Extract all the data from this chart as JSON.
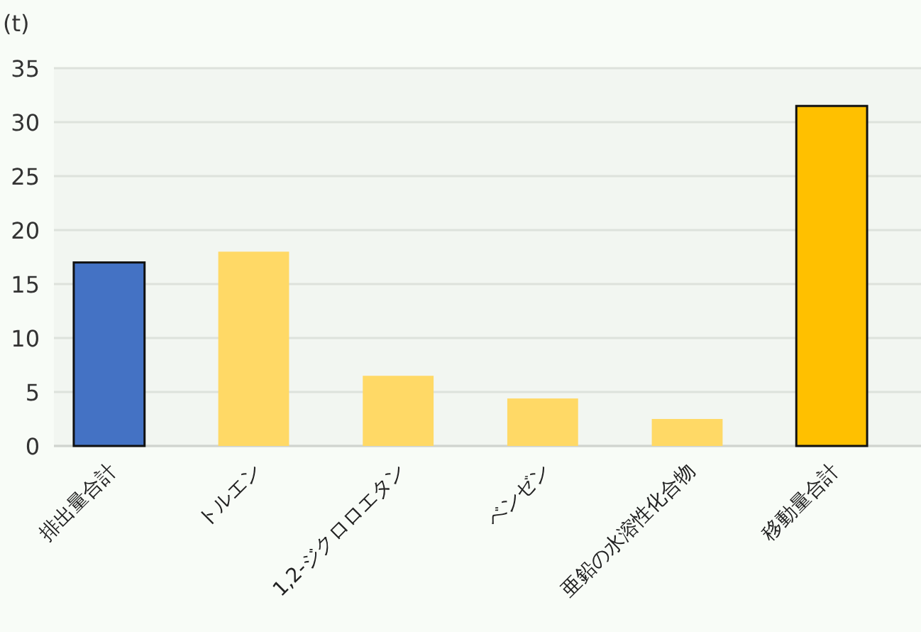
{
  "chart_data": {
    "type": "bar",
    "ylabel": "(t)",
    "categories": [
      "排出量合計",
      "トルエン",
      "1,2-ジクロロエタン",
      "ベンゼン",
      "亜鉛の水溶性化合物",
      "移動量合計"
    ],
    "values": [
      17,
      18,
      6.5,
      4.4,
      2.5,
      31.5
    ],
    "colors": [
      "#4472c4",
      "#ffd966",
      "#ffd966",
      "#ffd966",
      "#ffd966",
      "#ffc000"
    ],
    "ylim": [
      0,
      35
    ],
    "yticks": [
      0,
      5,
      10,
      15,
      20,
      25,
      30,
      35
    ],
    "grid": "y"
  }
}
